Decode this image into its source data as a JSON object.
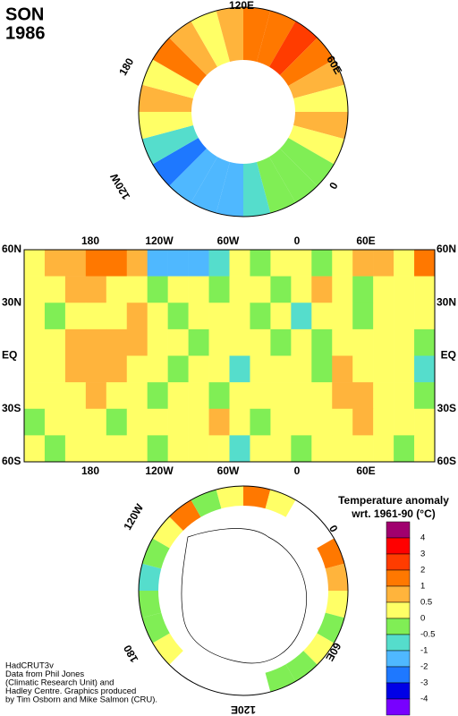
{
  "header": {
    "season": "SON",
    "year": "1986"
  },
  "north_map": {
    "labels": [
      "120E",
      "60E",
      "0",
      "120W",
      "180"
    ],
    "ring_values": [
      1.2,
      1.5,
      2.5,
      1.2,
      0.7,
      0.3,
      0.6,
      0.2,
      -0.3,
      -0.3,
      -0.3,
      -0.7,
      -1.2,
      -1.5,
      -1.2,
      -2.5,
      -0.8,
      0.3,
      0.6,
      0.3,
      1.2,
      0.7,
      0.4,
      0.8
    ]
  },
  "world_map": {
    "lon_labels": [
      "180",
      "120W",
      "60W",
      "0",
      "60E"
    ],
    "lat_labels": [
      "60N",
      "30N",
      "EQ",
      "30S",
      "60S"
    ],
    "grid": [
      [
        0.3,
        0.6,
        0.8,
        1.2,
        1.5,
        0.7,
        -1.5,
        -2,
        -1.2,
        -0.8,
        0.2,
        -0.3,
        0.3,
        0.1,
        -0.2,
        0.3,
        0.6,
        0.8,
        0.4,
        1.2
      ],
      [
        0.2,
        0.3,
        0.6,
        0.8,
        0.4,
        0.3,
        -0.3,
        0.2,
        0.4,
        -0.2,
        0.3,
        0.1,
        -0.4,
        0.2,
        0.6,
        0.3,
        -0.2,
        0.4,
        0.2,
        0.3
      ],
      [
        0.3,
        -0.2,
        0.4,
        0.3,
        0.2,
        0.6,
        0.3,
        -0.3,
        0.4,
        0.2,
        0.1,
        -0.2,
        0.3,
        -0.6,
        0.3,
        0.2,
        -0.3,
        0.4,
        0.3,
        0.2
      ],
      [
        0.4,
        0.3,
        0.7,
        0.8,
        0.9,
        0.6,
        0.3,
        0.2,
        -0.3,
        0.2,
        0.4,
        0.3,
        -0.3,
        0.2,
        -0.4,
        0.3,
        0.2,
        0.3,
        0.4,
        -0.2
      ],
      [
        0.3,
        0.4,
        0.8,
        0.7,
        0.6,
        0.4,
        0.2,
        -0.4,
        0.2,
        0.3,
        -0.6,
        0.2,
        0.3,
        0.2,
        -0.3,
        0.6,
        0.3,
        0.2,
        0.3,
        -0.7
      ],
      [
        0.2,
        0.3,
        0.4,
        0.6,
        0.3,
        0.2,
        -0.2,
        0.3,
        0.4,
        -0.3,
        0.2,
        0.4,
        0.3,
        0.2,
        0.3,
        0.7,
        0.6,
        0.3,
        0.2,
        -0.3
      ],
      [
        -0.3,
        0.2,
        0.3,
        0.4,
        -0.2,
        0.3,
        0.2,
        0.3,
        0.2,
        0.6,
        0.3,
        -0.2,
        0.4,
        0.3,
        0.2,
        0.3,
        0.8,
        0.4,
        0.2,
        0.3
      ],
      [
        0.2,
        -0.3,
        0.3,
        0.2,
        0.4,
        0.3,
        -0.2,
        0.3,
        0.2,
        0.3,
        -0.6,
        0.3,
        0.2,
        -0.3,
        0.2,
        0.3,
        0.4,
        0.2,
        -0.3,
        0.2
      ]
    ]
  },
  "south_map": {
    "labels": [
      "120W",
      "0",
      "60E",
      "120E",
      "180"
    ],
    "ring_values": [
      1.2,
      0.3,
      null,
      null,
      1.2,
      0.7,
      0.3,
      -0.3,
      0.3,
      -0.3,
      -0.3,
      null,
      null,
      null,
      null,
      0.3,
      -0.3,
      -0.3,
      -0.7,
      -0.3,
      0.3,
      1.5,
      -0.3,
      0.3
    ]
  },
  "legend": {
    "title": "Temperature anomaly",
    "subtitle": "wrt. 1961-90  (°C)",
    "ticks": [
      4,
      3,
      2,
      1,
      0.5,
      0,
      -0.5,
      -1,
      -2,
      -3,
      -4
    ],
    "colors": [
      "#a0006e",
      "#ff0000",
      "#ff3c00",
      "#ff7800",
      "#ffb43c",
      "#ffff66",
      "#80ee55",
      "#55ddcc",
      "#4fb8ff",
      "#1e78ff",
      "#0000e6",
      "#7800ff"
    ]
  },
  "credits": [
    "HadCRUT3v",
    "Data from Phil Jones",
    "(Climatic Research Unit) and",
    "Hadley Centre.  Graphics produced",
    "by Tim Osborn and Mike Salmon (CRU)."
  ]
}
